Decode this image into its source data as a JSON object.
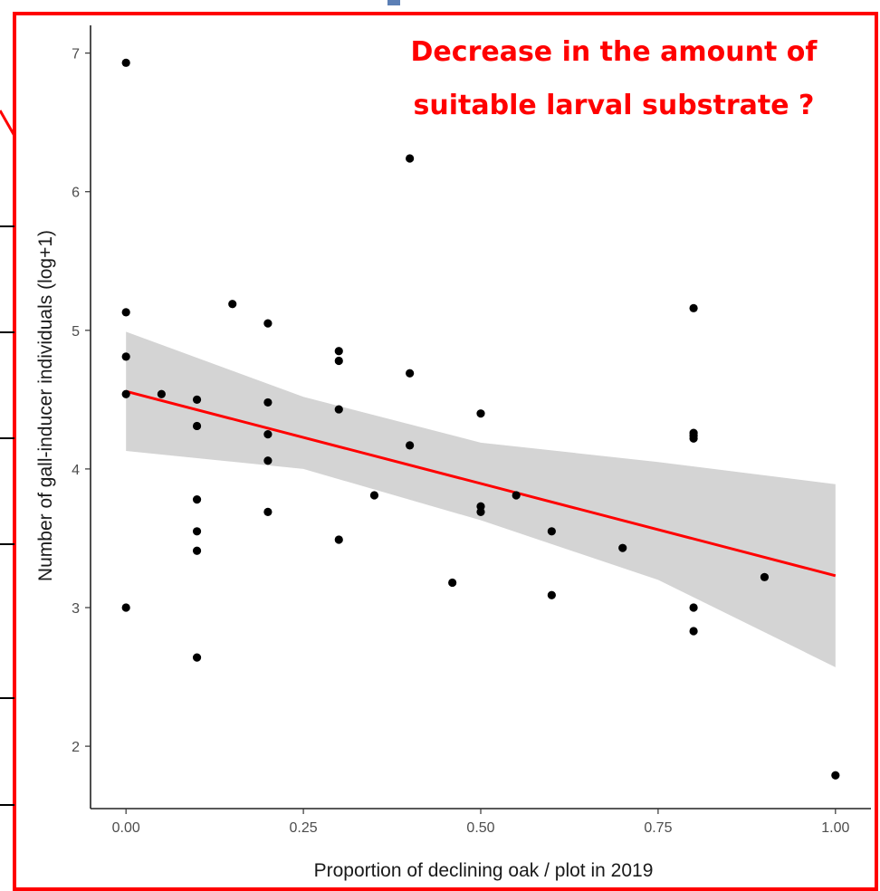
{
  "chart_data": {
    "type": "scatter",
    "title": "",
    "xlabel": "Proportion of declining oak / plot in 2019",
    "ylabel": "Number of gall-inducer individuals (log+1)",
    "xlim": [
      -0.05,
      1.05
    ],
    "ylim": [
      1.55,
      7.2
    ],
    "x_ticks": [
      0.0,
      0.25,
      0.5,
      0.75,
      1.0
    ],
    "x_tick_labels": [
      "0.00",
      "0.25",
      "0.50",
      "0.75",
      "1.00"
    ],
    "y_ticks": [
      2,
      3,
      4,
      5,
      6,
      7
    ],
    "y_tick_labels": [
      "2",
      "3",
      "4",
      "5",
      "6",
      "7"
    ],
    "grid": false,
    "annotation": {
      "line1": "Decrease in the amount of",
      "line2": "suitable larval substrate ?"
    },
    "points": [
      {
        "x": 0.0,
        "y": 6.93
      },
      {
        "x": 0.0,
        "y": 5.13
      },
      {
        "x": 0.0,
        "y": 4.81
      },
      {
        "x": 0.0,
        "y": 4.54
      },
      {
        "x": 0.0,
        "y": 3.0
      },
      {
        "x": 0.05,
        "y": 4.54
      },
      {
        "x": 0.1,
        "y": 4.5
      },
      {
        "x": 0.1,
        "y": 4.31
      },
      {
        "x": 0.1,
        "y": 3.78
      },
      {
        "x": 0.1,
        "y": 3.55
      },
      {
        "x": 0.1,
        "y": 3.41
      },
      {
        "x": 0.1,
        "y": 2.64
      },
      {
        "x": 0.15,
        "y": 5.19
      },
      {
        "x": 0.2,
        "y": 5.05
      },
      {
        "x": 0.2,
        "y": 4.48
      },
      {
        "x": 0.2,
        "y": 4.25
      },
      {
        "x": 0.2,
        "y": 4.06
      },
      {
        "x": 0.2,
        "y": 3.69
      },
      {
        "x": 0.3,
        "y": 4.85
      },
      {
        "x": 0.3,
        "y": 4.78
      },
      {
        "x": 0.3,
        "y": 4.43
      },
      {
        "x": 0.3,
        "y": 3.49
      },
      {
        "x": 0.35,
        "y": 3.81
      },
      {
        "x": 0.4,
        "y": 6.24
      },
      {
        "x": 0.4,
        "y": 4.69
      },
      {
        "x": 0.4,
        "y": 4.17
      },
      {
        "x": 0.46,
        "y": 3.18
      },
      {
        "x": 0.5,
        "y": 4.4
      },
      {
        "x": 0.5,
        "y": 3.73
      },
      {
        "x": 0.5,
        "y": 3.69
      },
      {
        "x": 0.55,
        "y": 3.81
      },
      {
        "x": 0.6,
        "y": 3.55
      },
      {
        "x": 0.6,
        "y": 3.09
      },
      {
        "x": 0.7,
        "y": 3.43
      },
      {
        "x": 0.8,
        "y": 5.16
      },
      {
        "x": 0.8,
        "y": 4.26
      },
      {
        "x": 0.8,
        "y": 4.24
      },
      {
        "x": 0.8,
        "y": 4.22
      },
      {
        "x": 0.8,
        "y": 3.0
      },
      {
        "x": 0.8,
        "y": 2.83
      },
      {
        "x": 0.9,
        "y": 3.22
      },
      {
        "x": 1.0,
        "y": 1.79
      }
    ],
    "fit_line": {
      "x": [
        0.0,
        1.0
      ],
      "y": [
        4.56,
        3.23
      ]
    },
    "confidence_band": {
      "x": [
        0.0,
        0.25,
        0.5,
        0.75,
        1.0
      ],
      "lower": [
        4.13,
        4.0,
        3.63,
        3.2,
        2.57
      ],
      "upper": [
        4.99,
        4.52,
        4.19,
        4.05,
        3.89
      ]
    },
    "colors": {
      "points": "#000000",
      "fit_line": "#ff0000",
      "band": "#d4d4d4",
      "frame": "#ff0000",
      "annotation": "#ff0000"
    }
  }
}
